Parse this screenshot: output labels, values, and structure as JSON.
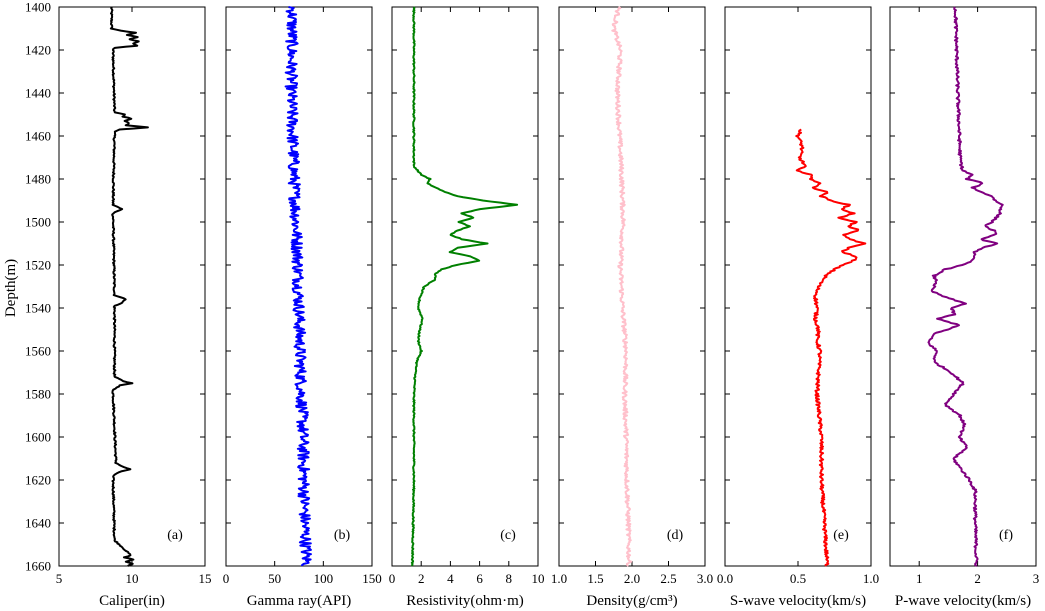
{
  "chart_data": {
    "type": "line",
    "y_axis": {
      "label": "Depth(m)",
      "range": [
        1400,
        1660
      ],
      "inverted": true,
      "ticks": [
        1400,
        1420,
        1440,
        1460,
        1480,
        1500,
        1520,
        1540,
        1560,
        1580,
        1600,
        1620,
        1640,
        1660
      ]
    },
    "grid": false,
    "panels": [
      {
        "tag": "(a)",
        "xlabel": "Caliper(in)",
        "xlim": [
          5,
          15
        ],
        "xticks": [
          5,
          10,
          15
        ],
        "color": "#000000",
        "noise": 0.06,
        "series": [
          [
            1400,
            8.6
          ],
          [
            1410,
            8.6
          ],
          [
            1411,
            9.2
          ],
          [
            1412,
            10.3
          ],
          [
            1413,
            9.6
          ],
          [
            1414,
            10.4
          ],
          [
            1415,
            9.8
          ],
          [
            1416,
            10.5
          ],
          [
            1417,
            10.1
          ],
          [
            1418,
            10.3
          ],
          [
            1419,
            8.8
          ],
          [
            1420,
            8.7
          ],
          [
            1449,
            8.8
          ],
          [
            1450,
            9.5
          ],
          [
            1451,
            9.4
          ],
          [
            1452,
            10.0
          ],
          [
            1453,
            9.5
          ],
          [
            1454,
            9.8
          ],
          [
            1455,
            9.6
          ],
          [
            1456,
            11.1
          ],
          [
            1457,
            9.2
          ],
          [
            1458,
            8.8
          ],
          [
            1492,
            8.7
          ],
          [
            1494,
            9.3
          ],
          [
            1496,
            8.7
          ],
          [
            1534,
            8.8
          ],
          [
            1536,
            9.6
          ],
          [
            1538,
            9.2
          ],
          [
            1539,
            8.8
          ],
          [
            1572,
            8.8
          ],
          [
            1574,
            9.4
          ],
          [
            1575,
            10.0
          ],
          [
            1576,
            9.2
          ],
          [
            1578,
            8.7
          ],
          [
            1612,
            8.9
          ],
          [
            1614,
            9.4
          ],
          [
            1615,
            9.9
          ],
          [
            1616,
            9.2
          ],
          [
            1618,
            8.7
          ],
          [
            1648,
            8.8
          ],
          [
            1651,
            9.3
          ],
          [
            1653,
            9.6
          ],
          [
            1655,
            9.9
          ],
          [
            1656,
            9.5
          ],
          [
            1657,
            10.1
          ],
          [
            1658,
            9.6
          ],
          [
            1659,
            10.0
          ],
          [
            1660,
            9.7
          ]
        ]
      },
      {
        "tag": "(b)",
        "xlabel": "Gamma ray(API)",
        "xlim": [
          0,
          150
        ],
        "xticks": [
          0,
          50,
          100,
          150
        ],
        "color": "#0000ff",
        "noise": 6,
        "series": [
          [
            1400,
            68
          ],
          [
            1440,
            67
          ],
          [
            1480,
            70
          ],
          [
            1520,
            74
          ],
          [
            1560,
            76
          ],
          [
            1600,
            79
          ],
          [
            1640,
            81
          ],
          [
            1660,
            83
          ]
        ]
      },
      {
        "tag": "(c)",
        "xlabel": "Resistivity(ohm·m)",
        "xlim": [
          0,
          10
        ],
        "xticks": [
          0,
          2,
          4,
          6,
          8,
          10
        ],
        "color": "#008000",
        "noise": 0.05,
        "series": [
          [
            1400,
            1.5
          ],
          [
            1474,
            1.5
          ],
          [
            1478,
            2.0
          ],
          [
            1480,
            2.6
          ],
          [
            1482,
            2.4
          ],
          [
            1484,
            3.0
          ],
          [
            1486,
            3.6
          ],
          [
            1488,
            4.5
          ],
          [
            1490,
            6.2
          ],
          [
            1492,
            8.6
          ],
          [
            1494,
            6.0
          ],
          [
            1496,
            4.8
          ],
          [
            1498,
            5.6
          ],
          [
            1500,
            4.6
          ],
          [
            1502,
            5.3
          ],
          [
            1504,
            4.5
          ],
          [
            1506,
            4.0
          ],
          [
            1508,
            4.8
          ],
          [
            1510,
            6.5
          ],
          [
            1512,
            4.5
          ],
          [
            1514,
            4.0
          ],
          [
            1516,
            5.4
          ],
          [
            1518,
            6.0
          ],
          [
            1520,
            4.4
          ],
          [
            1522,
            3.4
          ],
          [
            1524,
            3.0
          ],
          [
            1527,
            2.9
          ],
          [
            1530,
            2.2
          ],
          [
            1535,
            1.9
          ],
          [
            1540,
            1.8
          ],
          [
            1545,
            2.1
          ],
          [
            1550,
            1.9
          ],
          [
            1555,
            1.8
          ],
          [
            1560,
            2.0
          ],
          [
            1565,
            1.7
          ],
          [
            1570,
            1.6
          ],
          [
            1580,
            1.5
          ],
          [
            1620,
            1.5
          ],
          [
            1660,
            1.4
          ]
        ]
      },
      {
        "tag": "(d)",
        "xlabel": "Density(g/cm³)",
        "xlim": [
          1.0,
          3.0
        ],
        "xticks": [
          1.0,
          1.5,
          2.0,
          2.5,
          3.0
        ],
        "xtick_labels": [
          "1.0",
          "1.5",
          "2.0",
          "2.5",
          "3.0"
        ],
        "color": "#ffc0cb",
        "noise": 0.03,
        "series": [
          [
            1400,
            1.82
          ],
          [
            1410,
            1.75
          ],
          [
            1420,
            1.84
          ],
          [
            1440,
            1.8
          ],
          [
            1460,
            1.83
          ],
          [
            1480,
            1.86
          ],
          [
            1500,
            1.88
          ],
          [
            1520,
            1.84
          ],
          [
            1540,
            1.87
          ],
          [
            1560,
            1.92
          ],
          [
            1580,
            1.9
          ],
          [
            1600,
            1.92
          ],
          [
            1620,
            1.93
          ],
          [
            1640,
            1.95
          ],
          [
            1660,
            1.96
          ]
        ]
      },
      {
        "tag": "(e)",
        "xlabel": "S-wave velocity(km/s)",
        "xlim": [
          0.0,
          1.0
        ],
        "xticks": [
          0.0,
          0.5,
          1.0
        ],
        "xtick_labels": [
          "0.0",
          "0.5",
          "1.0"
        ],
        "color": "#ff0000",
        "noise": 0.012,
        "series": [
          [
            1457,
            0.52
          ],
          [
            1460,
            0.5
          ],
          [
            1465,
            0.53
          ],
          [
            1470,
            0.51
          ],
          [
            1474,
            0.55
          ],
          [
            1476,
            0.48
          ],
          [
            1478,
            0.6
          ],
          [
            1480,
            0.58
          ],
          [
            1482,
            0.66
          ],
          [
            1484,
            0.6
          ],
          [
            1486,
            0.7
          ],
          [
            1488,
            0.66
          ],
          [
            1490,
            0.72
          ],
          [
            1492,
            0.85
          ],
          [
            1494,
            0.8
          ],
          [
            1496,
            0.88
          ],
          [
            1498,
            0.78
          ],
          [
            1500,
            0.9
          ],
          [
            1502,
            0.84
          ],
          [
            1504,
            0.92
          ],
          [
            1506,
            0.8
          ],
          [
            1508,
            0.86
          ],
          [
            1510,
            0.95
          ],
          [
            1512,
            0.85
          ],
          [
            1514,
            0.8
          ],
          [
            1516,
            0.9
          ],
          [
            1518,
            0.88
          ],
          [
            1520,
            0.8
          ],
          [
            1522,
            0.75
          ],
          [
            1525,
            0.69
          ],
          [
            1530,
            0.64
          ],
          [
            1535,
            0.62
          ],
          [
            1540,
            0.63
          ],
          [
            1545,
            0.62
          ],
          [
            1550,
            0.64
          ],
          [
            1555,
            0.63
          ],
          [
            1560,
            0.65
          ],
          [
            1570,
            0.64
          ],
          [
            1580,
            0.63
          ],
          [
            1600,
            0.66
          ],
          [
            1620,
            0.66
          ],
          [
            1640,
            0.68
          ],
          [
            1660,
            0.7
          ]
        ]
      },
      {
        "tag": "(f)",
        "xlabel": "P-wave velocity(km/s)",
        "xlim": [
          0.5,
          3.0
        ],
        "xticks": [
          1,
          2,
          3
        ],
        "xtick_labels": [
          "1",
          "2",
          "3"
        ],
        "color": "#800080",
        "noise": 0.025,
        "series": [
          [
            1400,
            1.62
          ],
          [
            1440,
            1.66
          ],
          [
            1470,
            1.7
          ],
          [
            1476,
            1.74
          ],
          [
            1478,
            1.9
          ],
          [
            1480,
            1.82
          ],
          [
            1482,
            2.1
          ],
          [
            1484,
            1.92
          ],
          [
            1486,
            2.05
          ],
          [
            1488,
            2.25
          ],
          [
            1490,
            2.3
          ],
          [
            1492,
            2.42
          ],
          [
            1496,
            2.38
          ],
          [
            1500,
            2.25
          ],
          [
            1502,
            2.12
          ],
          [
            1504,
            2.28
          ],
          [
            1506,
            2.3
          ],
          [
            1508,
            2.05
          ],
          [
            1510,
            2.32
          ],
          [
            1512,
            2.1
          ],
          [
            1514,
            1.95
          ],
          [
            1518,
            1.9
          ],
          [
            1520,
            1.75
          ],
          [
            1522,
            1.45
          ],
          [
            1525,
            1.25
          ],
          [
            1528,
            1.3
          ],
          [
            1532,
            1.2
          ],
          [
            1535,
            1.45
          ],
          [
            1538,
            1.8
          ],
          [
            1540,
            1.55
          ],
          [
            1543,
            1.6
          ],
          [
            1545,
            1.3
          ],
          [
            1548,
            1.7
          ],
          [
            1552,
            1.25
          ],
          [
            1556,
            1.15
          ],
          [
            1560,
            1.3
          ],
          [
            1565,
            1.25
          ],
          [
            1570,
            1.55
          ],
          [
            1575,
            1.75
          ],
          [
            1580,
            1.6
          ],
          [
            1585,
            1.45
          ],
          [
            1590,
            1.7
          ],
          [
            1595,
            1.78
          ],
          [
            1600,
            1.68
          ],
          [
            1605,
            1.82
          ],
          [
            1610,
            1.58
          ],
          [
            1615,
            1.72
          ],
          [
            1620,
            1.86
          ],
          [
            1625,
            1.96
          ],
          [
            1640,
            1.96
          ],
          [
            1660,
            1.98
          ]
        ]
      }
    ]
  }
}
